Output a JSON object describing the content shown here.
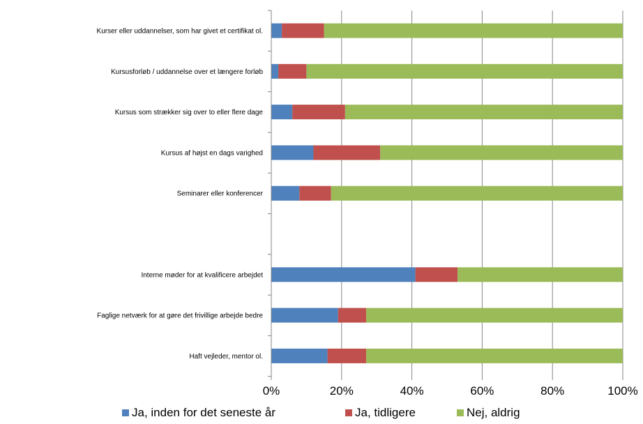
{
  "chart_data": {
    "type": "bar",
    "orientation": "horizontal",
    "stacked": true,
    "categories": [
      "Kurser eller uddannelser, som har givet et certifikat ol.",
      "Kursusforløb / uddannelse over et længere forløb",
      "Kursus som strækker sig over to eller flere dage",
      "Kursus af højst en dags varighed",
      "Seminarer eller konferencer",
      "",
      "Interne møder for at kvalificere arbejdet",
      "Faglige netværk for at gøre det frivillige arbejde bedre",
      "Haft vejleder, mentor ol."
    ],
    "series": [
      {
        "name": "Ja, inden for det seneste år",
        "color": "#4F81BD",
        "values": [
          3,
          2,
          6,
          12,
          8,
          null,
          41,
          19,
          16
        ]
      },
      {
        "name": "Ja, tidligere",
        "color": "#C0504D",
        "values": [
          12,
          8,
          15,
          19,
          9,
          null,
          12,
          8,
          11
        ]
      },
      {
        "name": "Nej, aldrig",
        "color": "#9BBB59",
        "values": [
          85,
          90,
          79,
          69,
          83,
          null,
          47,
          73,
          73
        ]
      }
    ],
    "xlim": [
      0,
      100
    ],
    "xticks": [
      "0%",
      "20%",
      "40%",
      "60%",
      "80%",
      "100%"
    ],
    "grid": true,
    "legend_position": "bottom"
  }
}
